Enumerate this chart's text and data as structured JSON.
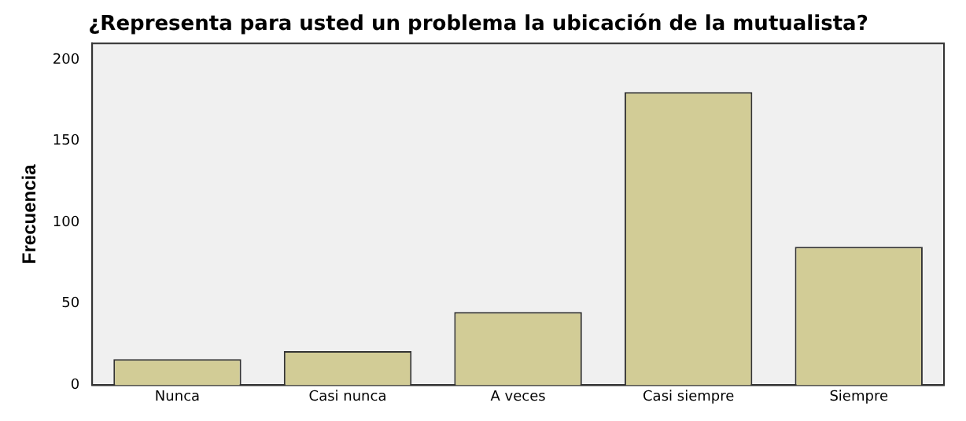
{
  "chart_data": {
    "type": "bar",
    "title": "¿Representa para usted un problema la ubicación de la mutualista?",
    "ylabel": "Frecuencia",
    "categories": [
      "Nunca",
      "Casi nunca",
      "A veces",
      "Casi siempre",
      "Siempre"
    ],
    "values": [
      16,
      21,
      45,
      180,
      85
    ],
    "color": "#d2cc96",
    "ylim": [
      0,
      210
    ],
    "yticks": [
      0,
      50,
      100,
      150,
      200
    ],
    "grid": false,
    "legend": false
  }
}
